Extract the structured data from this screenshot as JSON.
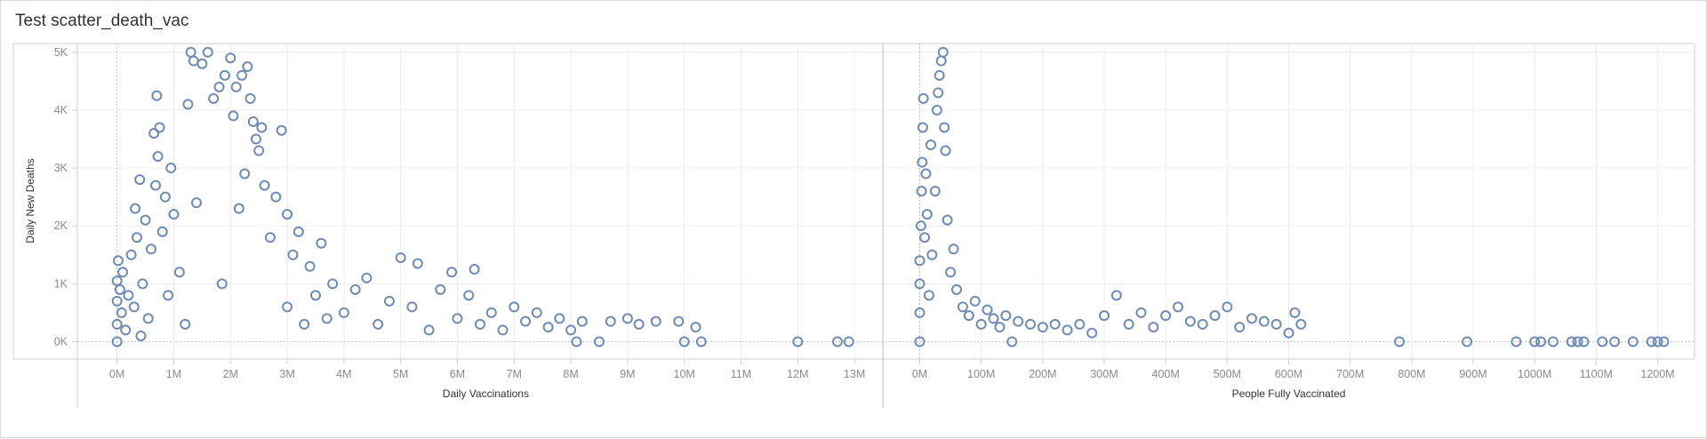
{
  "dashboard": {
    "title": "Test scatter_death_vac"
  },
  "colors": {
    "marker": "#6e8bb4",
    "grid": "#ececec",
    "axis": "#cfcfcf",
    "zero": "#c0c0c0",
    "divider": "#bdbdbd"
  },
  "chart_data": [
    {
      "type": "scatter",
      "marker": "open-circle",
      "title": "",
      "xlabel": "Daily Vaccinations",
      "ylabel": "Daily New Deaths",
      "xlim": [
        -700000,
        13500000
      ],
      "ylim": [
        -300,
        5150
      ],
      "x_ticks": [
        0,
        1000000,
        2000000,
        3000000,
        4000000,
        5000000,
        6000000,
        7000000,
        8000000,
        9000000,
        10000000,
        11000000,
        12000000,
        13000000
      ],
      "x_tick_labels": [
        "0M",
        "1M",
        "2M",
        "3M",
        "4M",
        "5M",
        "6M",
        "7M",
        "8M",
        "9M",
        "10M",
        "11M",
        "12M",
        "13M"
      ],
      "y_ticks": [
        0,
        1000,
        2000,
        3000,
        4000,
        5000
      ],
      "y_tick_labels": [
        "0K",
        "1K",
        "2K",
        "3K",
        "4K",
        "5K"
      ],
      "points": [
        [
          0,
          0
        ],
        [
          0,
          300
        ],
        [
          0,
          700
        ],
        [
          0,
          1050
        ],
        [
          20000,
          1400
        ],
        [
          50000,
          900
        ],
        [
          80000,
          500
        ],
        [
          100000,
          1200
        ],
        [
          150000,
          200
        ],
        [
          200000,
          800
        ],
        [
          250000,
          1500
        ],
        [
          300000,
          600
        ],
        [
          320000,
          2300
        ],
        [
          350000,
          1800
        ],
        [
          400000,
          2800
        ],
        [
          420000,
          100
        ],
        [
          450000,
          1000
        ],
        [
          500000,
          2100
        ],
        [
          550000,
          400
        ],
        [
          600000,
          1600
        ],
        [
          650000,
          3600
        ],
        [
          680000,
          2700
        ],
        [
          700000,
          4250
        ],
        [
          720000,
          3200
        ],
        [
          750000,
          3700
        ],
        [
          800000,
          1900
        ],
        [
          850000,
          2500
        ],
        [
          900000,
          800
        ],
        [
          950000,
          3000
        ],
        [
          1000000,
          2200
        ],
        [
          1100000,
          1200
        ],
        [
          1200000,
          300
        ],
        [
          1250000,
          4100
        ],
        [
          1300000,
          5000
        ],
        [
          1350000,
          4850
        ],
        [
          1400000,
          2400
        ],
        [
          1500000,
          4800
        ],
        [
          1600000,
          5000
        ],
        [
          1700000,
          4200
        ],
        [
          1800000,
          4400
        ],
        [
          1850000,
          1000
        ],
        [
          1900000,
          4600
        ],
        [
          2000000,
          4900
        ],
        [
          2050000,
          3900
        ],
        [
          2100000,
          4400
        ],
        [
          2150000,
          2300
        ],
        [
          2200000,
          4600
        ],
        [
          2250000,
          2900
        ],
        [
          2300000,
          4750
        ],
        [
          2350000,
          4200
        ],
        [
          2400000,
          3800
        ],
        [
          2450000,
          3500
        ],
        [
          2500000,
          3300
        ],
        [
          2550000,
          3700
        ],
        [
          2600000,
          2700
        ],
        [
          2700000,
          1800
        ],
        [
          2800000,
          2500
        ],
        [
          2900000,
          3650
        ],
        [
          3000000,
          2200
        ],
        [
          3000000,
          600
        ],
        [
          3100000,
          1500
        ],
        [
          3200000,
          1900
        ],
        [
          3300000,
          300
        ],
        [
          3400000,
          1300
        ],
        [
          3500000,
          800
        ],
        [
          3600000,
          1700
        ],
        [
          3700000,
          400
        ],
        [
          3800000,
          1000
        ],
        [
          4000000,
          500
        ],
        [
          4200000,
          900
        ],
        [
          4400000,
          1100
        ],
        [
          4600000,
          300
        ],
        [
          4800000,
          700
        ],
        [
          5000000,
          1450
        ],
        [
          5200000,
          600
        ],
        [
          5300000,
          1350
        ],
        [
          5500000,
          200
        ],
        [
          5700000,
          900
        ],
        [
          5900000,
          1200
        ],
        [
          6000000,
          400
        ],
        [
          6200000,
          800
        ],
        [
          6300000,
          1250
        ],
        [
          6400000,
          300
        ],
        [
          6600000,
          500
        ],
        [
          6800000,
          200
        ],
        [
          7000000,
          600
        ],
        [
          7200000,
          350
        ],
        [
          7400000,
          500
        ],
        [
          7600000,
          250
        ],
        [
          7800000,
          400
        ],
        [
          8000000,
          200
        ],
        [
          8100000,
          0
        ],
        [
          8200000,
          350
        ],
        [
          8500000,
          0
        ],
        [
          8700000,
          350
        ],
        [
          9000000,
          400
        ],
        [
          9200000,
          300
        ],
        [
          9500000,
          350
        ],
        [
          9900000,
          350
        ],
        [
          10000000,
          0
        ],
        [
          10200000,
          250
        ],
        [
          10300000,
          0
        ],
        [
          12000000,
          0
        ],
        [
          12700000,
          0
        ],
        [
          12900000,
          0
        ]
      ]
    },
    {
      "type": "scatter",
      "marker": "open-circle",
      "title": "",
      "xlabel": "People Fully Vaccinated",
      "ylabel": "",
      "xlim": [
        -60000000,
        1260000000
      ],
      "ylim": [
        -300,
        5150
      ],
      "x_ticks": [
        0,
        100000000,
        200000000,
        300000000,
        400000000,
        500000000,
        600000000,
        700000000,
        800000000,
        900000000,
        1000000000,
        1100000000,
        1200000000
      ],
      "x_tick_labels": [
        "0M",
        "100M",
        "200M",
        "300M",
        "400M",
        "500M",
        "600M",
        "700M",
        "800M",
        "900M",
        "1000M",
        "1100M",
        "1200M"
      ],
      "points": [
        [
          0,
          0
        ],
        [
          0,
          500
        ],
        [
          0,
          1000
        ],
        [
          0,
          1400
        ],
        [
          2000000,
          2000
        ],
        [
          3000000,
          2600
        ],
        [
          4000000,
          3100
        ],
        [
          5000000,
          3700
        ],
        [
          6000000,
          4200
        ],
        [
          8000000,
          1800
        ],
        [
          10000000,
          2900
        ],
        [
          12000000,
          2200
        ],
        [
          15000000,
          800
        ],
        [
          18000000,
          3400
        ],
        [
          20000000,
          1500
        ],
        [
          25000000,
          2600
        ],
        [
          28000000,
          4000
        ],
        [
          30000000,
          4300
        ],
        [
          32000000,
          4600
        ],
        [
          35000000,
          4850
        ],
        [
          38000000,
          5000
        ],
        [
          40000000,
          3700
        ],
        [
          42000000,
          3300
        ],
        [
          45000000,
          2100
        ],
        [
          50000000,
          1200
        ],
        [
          55000000,
          1600
        ],
        [
          60000000,
          900
        ],
        [
          70000000,
          600
        ],
        [
          80000000,
          450
        ],
        [
          90000000,
          700
        ],
        [
          100000000,
          300
        ],
        [
          110000000,
          550
        ],
        [
          120000000,
          400
        ],
        [
          130000000,
          250
        ],
        [
          140000000,
          450
        ],
        [
          150000000,
          0
        ],
        [
          160000000,
          350
        ],
        [
          180000000,
          300
        ],
        [
          200000000,
          250
        ],
        [
          220000000,
          300
        ],
        [
          240000000,
          200
        ],
        [
          260000000,
          300
        ],
        [
          280000000,
          150
        ],
        [
          300000000,
          450
        ],
        [
          320000000,
          800
        ],
        [
          340000000,
          300
        ],
        [
          360000000,
          500
        ],
        [
          380000000,
          250
        ],
        [
          400000000,
          450
        ],
        [
          420000000,
          600
        ],
        [
          440000000,
          350
        ],
        [
          460000000,
          300
        ],
        [
          480000000,
          450
        ],
        [
          500000000,
          600
        ],
        [
          520000000,
          250
        ],
        [
          540000000,
          400
        ],
        [
          560000000,
          350
        ],
        [
          580000000,
          300
        ],
        [
          600000000,
          150
        ],
        [
          610000000,
          500
        ],
        [
          620000000,
          300
        ],
        [
          780000000,
          0
        ],
        [
          890000000,
          0
        ],
        [
          970000000,
          0
        ],
        [
          1000000000,
          0
        ],
        [
          1010000000,
          0
        ],
        [
          1030000000,
          0
        ],
        [
          1060000000,
          0
        ],
        [
          1070000000,
          0
        ],
        [
          1080000000,
          0
        ],
        [
          1110000000,
          0
        ],
        [
          1130000000,
          0
        ],
        [
          1160000000,
          0
        ],
        [
          1190000000,
          0
        ],
        [
          1200000000,
          0
        ],
        [
          1210000000,
          0
        ]
      ]
    }
  ]
}
